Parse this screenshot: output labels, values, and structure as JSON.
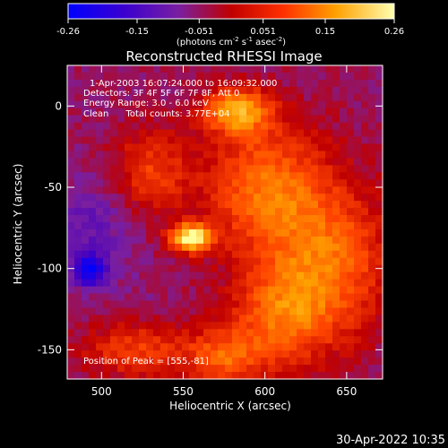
{
  "colorbar": {
    "ticks": [
      "-0.26",
      "-0.15",
      "-0.051",
      "0.051",
      "0.15",
      "0.26"
    ],
    "unit_parts": [
      "(photons cm",
      "-2",
      " s",
      "-1",
      " asec",
      "-2",
      ")"
    ]
  },
  "plot": {
    "title": "Reconstructed RHESSI Image",
    "info_lines": [
      "1-Apr-2003 16:07:24.000 to 16:09:32.000",
      "Detectors: 3F 4F 5F 6F 7F 8F, Att 0",
      "Energy Range: 3.0 - 6.0 keV",
      "Clean      Total counts: 3.77E+04"
    ],
    "peak_text": "Position of Peak = [555,-81]"
  },
  "footer": {
    "date": "30-Apr-2022 10:35"
  },
  "chart_data": {
    "type": "heatmap",
    "title": "Reconstructed RHESSI Image",
    "xlabel": "Heliocentric X (arcsec)",
    "ylabel": "Heliocentric Y (arcsec)",
    "xlim": [
      479,
      672
    ],
    "ylim": [
      -168,
      25
    ],
    "x_ticks": [
      500,
      550,
      600,
      650
    ],
    "y_ticks": [
      0,
      -50,
      -100,
      -150
    ],
    "colorbar_range": [
      -0.26,
      0.26
    ],
    "colormap": [
      "#0000ff",
      "#4400c0",
      "#7a1fa0",
      "#c00000",
      "#ff4400",
      "#ffa000",
      "#ffff9a"
    ],
    "peak": {
      "x": 555,
      "y": -81
    },
    "features": [
      {
        "x": 555,
        "y": -81,
        "intensity": 0.26,
        "sx": 9,
        "sy": 6
      },
      {
        "x": 583,
        "y": -3,
        "intensity": 0.17,
        "sx": 14,
        "sy": 10
      },
      {
        "x": 600,
        "y": -50,
        "intensity": 0.12,
        "sx": 26,
        "sy": 28
      },
      {
        "x": 640,
        "y": -95,
        "intensity": 0.11,
        "sx": 26,
        "sy": 32
      },
      {
        "x": 610,
        "y": -130,
        "intensity": 0.1,
        "sx": 22,
        "sy": 22
      },
      {
        "x": 575,
        "y": -155,
        "intensity": 0.09,
        "sx": 16,
        "sy": 12
      },
      {
        "x": 530,
        "y": -40,
        "intensity": 0.07,
        "sx": 16,
        "sy": 18
      },
      {
        "x": 522,
        "y": -150,
        "intensity": 0.07,
        "sx": 24,
        "sy": 12
      },
      {
        "x": 493,
        "y": -101,
        "intensity": -0.24,
        "sx": 7,
        "sy": 7
      },
      {
        "x": 492,
        "y": -75,
        "intensity": -0.12,
        "sx": 18,
        "sy": 22
      },
      {
        "x": 520,
        "y": -115,
        "intensity": -0.06,
        "sx": 12,
        "sy": 10
      }
    ],
    "background": -0.05
  }
}
